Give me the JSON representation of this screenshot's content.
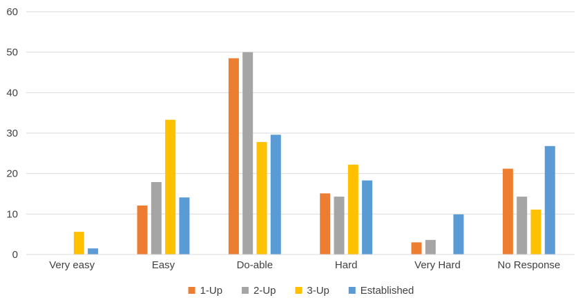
{
  "chart_data": {
    "type": "bar",
    "categories": [
      "Very easy",
      "Easy",
      "Do-able",
      "Hard",
      "Very Hard",
      "No Response"
    ],
    "series": [
      {
        "name": "1-Up",
        "color": "#ED7D31",
        "values": [
          0,
          12.1,
          48.5,
          15.1,
          3.0,
          21.2
        ]
      },
      {
        "name": "2-Up",
        "color": "#A5A5A5",
        "values": [
          0,
          17.9,
          50.0,
          14.3,
          3.6,
          14.3
        ]
      },
      {
        "name": "3-Up",
        "color": "#FFC000",
        "values": [
          5.6,
          33.3,
          27.8,
          22.2,
          0,
          11.1
        ]
      },
      {
        "name": "Established",
        "color": "#5B9BD5",
        "values": [
          1.5,
          14.1,
          29.6,
          18.3,
          9.9,
          26.8
        ]
      }
    ],
    "ylim": [
      0,
      60
    ],
    "yticks": [
      0,
      10,
      20,
      30,
      40,
      50,
      60
    ],
    "grid": true,
    "legend_position": "bottom",
    "title": "",
    "xlabel": "",
    "ylabel": ""
  }
}
